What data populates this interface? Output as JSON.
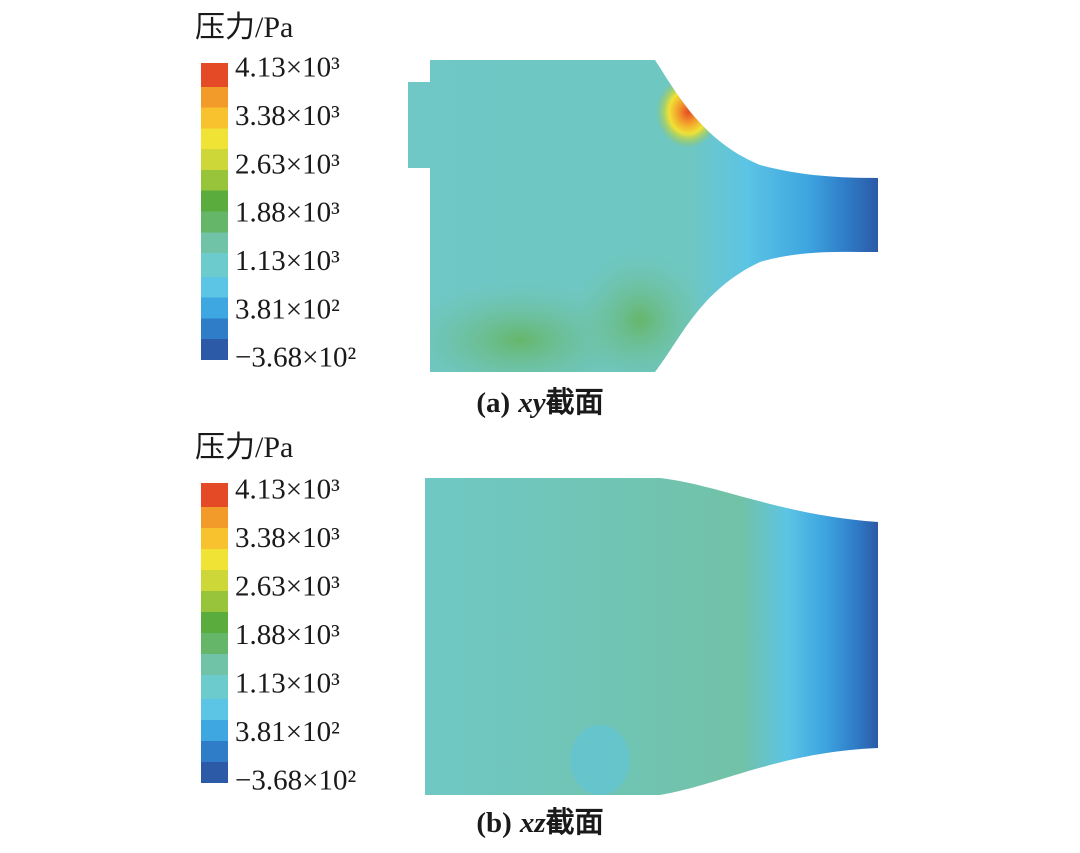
{
  "panels": [
    {
      "legend_title": "压力/Pa",
      "ticks": [
        "4.13×10³",
        "3.38×10³",
        "2.63×10³",
        "1.88×10³",
        "1.13×10³",
        "3.81×10²",
        "−3.68×10²"
      ],
      "caption": {
        "label": "(a)",
        "plane": "xy",
        "suffix": "截面"
      }
    },
    {
      "legend_title": "压力/Pa",
      "ticks": [
        "4.13×10³",
        "3.38×10³",
        "2.63×10³",
        "1.88×10³",
        "1.13×10³",
        "3.81×10²",
        "−3.68×10²"
      ],
      "caption": {
        "label": "(b)",
        "plane": "xz",
        "suffix": "截面"
      }
    }
  ]
}
